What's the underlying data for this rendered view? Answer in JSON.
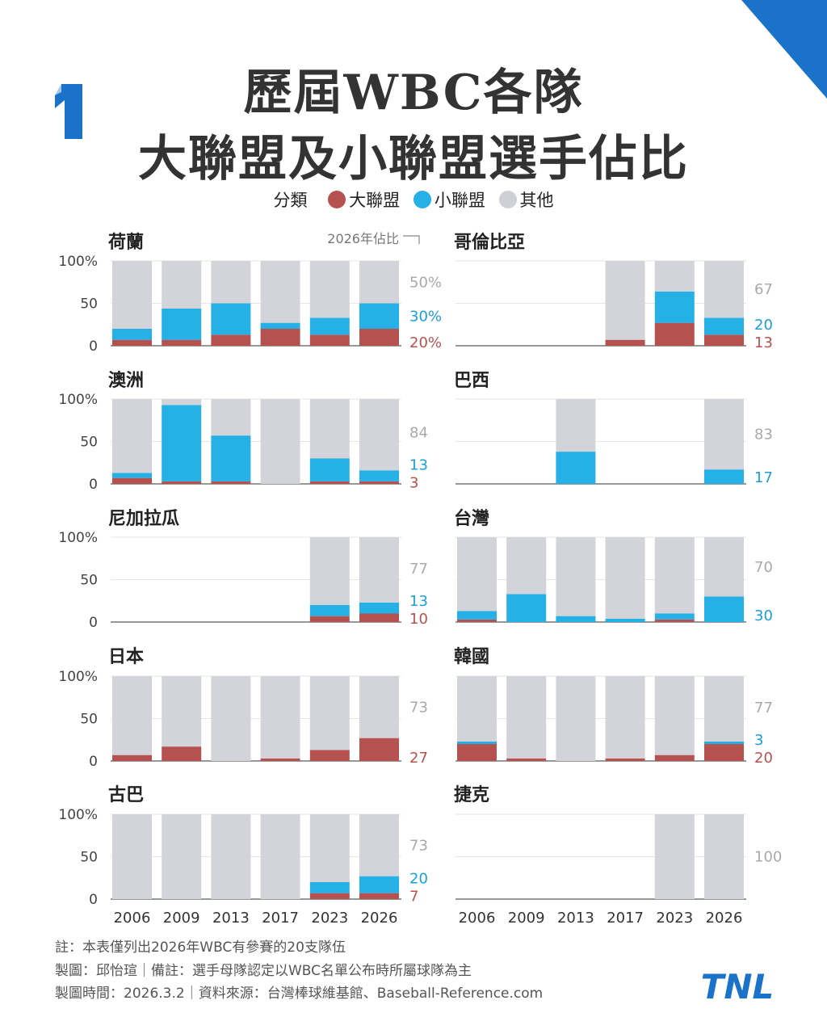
{
  "title_line1": "歷屆WBC各隊",
  "title_line2": "大聯盟及小聯盟選手佔比",
  "legend": {
    "label": "分類",
    "items": [
      {
        "name": "大聯盟",
        "color": "#b5524f"
      },
      {
        "name": "小聯盟",
        "color": "#25b1e6"
      },
      {
        "name": "其他",
        "color": "#cfd0d5"
      }
    ]
  },
  "annotation_2026": "2026年佔比",
  "colors": {
    "mlb": "#b5524f",
    "milb": "#25b1e6",
    "other": "#d3d4d9",
    "mlb_label": "#b5524f",
    "milb_label": "#1a9ed8",
    "other_label": "#a8a9ae",
    "accent": "#1a73c9"
  },
  "chart_data": {
    "type": "bar",
    "stacked": true,
    "categories": [
      "2006",
      "2009",
      "2013",
      "2017",
      "2023",
      "2026"
    ],
    "y_ticks": [
      "100%",
      "50",
      "0"
    ],
    "ylim": [
      0,
      100
    ],
    "series": [
      {
        "name": "大聯盟"
      },
      {
        "name": "小聯盟"
      },
      {
        "name": "其他"
      }
    ],
    "panels": [
      {
        "name": "荷蘭",
        "mlb": [
          7,
          7,
          13,
          20,
          13,
          20
        ],
        "milb": [
          13,
          37,
          37,
          7,
          20,
          30
        ],
        "other": [
          80,
          56,
          50,
          73,
          67,
          50
        ],
        "labels_2026": {
          "other": "50%",
          "milb": "30%",
          "mlb": "20%"
        }
      },
      {
        "name": "哥倫比亞",
        "mlb": [
          null,
          null,
          null,
          7,
          27,
          13
        ],
        "milb": [
          null,
          null,
          null,
          0,
          37,
          20
        ],
        "other": [
          null,
          null,
          null,
          93,
          36,
          67
        ],
        "labels_2026": {
          "other": "67",
          "milb": "20",
          "mlb": "13"
        }
      },
      {
        "name": "澳洲",
        "mlb": [
          7,
          3,
          3,
          0,
          3,
          3
        ],
        "milb": [
          6,
          90,
          54,
          0,
          27,
          13
        ],
        "other": [
          87,
          7,
          43,
          100,
          70,
          84
        ],
        "labels_2026": {
          "other": "84",
          "milb": "13",
          "mlb": "3"
        }
      },
      {
        "name": "巴西",
        "mlb": [
          null,
          null,
          0,
          null,
          null,
          0
        ],
        "milb": [
          null,
          null,
          38,
          null,
          null,
          17
        ],
        "other": [
          null,
          null,
          62,
          null,
          null,
          83
        ],
        "labels_2026": {
          "other": "83",
          "milb": "17"
        }
      },
      {
        "name": "尼加拉瓜",
        "mlb": [
          null,
          null,
          null,
          null,
          7,
          10
        ],
        "milb": [
          null,
          null,
          null,
          null,
          13,
          13
        ],
        "other": [
          null,
          null,
          null,
          null,
          80,
          77
        ],
        "labels_2026": {
          "other": "77",
          "milb": "13",
          "mlb": "10"
        }
      },
      {
        "name": "台灣",
        "mlb": [
          3,
          0,
          0,
          0,
          3,
          0
        ],
        "milb": [
          10,
          33,
          7,
          4,
          7,
          30
        ],
        "other": [
          87,
          67,
          93,
          96,
          90,
          70
        ],
        "labels_2026": {
          "other": "70",
          "milb": "30"
        }
      },
      {
        "name": "日本",
        "mlb": [
          7,
          17,
          0,
          3,
          13,
          27
        ],
        "milb": [
          0,
          0,
          0,
          0,
          0,
          0
        ],
        "other": [
          93,
          83,
          100,
          97,
          87,
          73
        ],
        "labels_2026": {
          "other": "73",
          "mlb": "27"
        }
      },
      {
        "name": "韓國",
        "mlb": [
          20,
          3,
          0,
          3,
          7,
          20
        ],
        "milb": [
          3,
          0,
          0,
          0,
          0,
          3
        ],
        "other": [
          77,
          97,
          100,
          97,
          93,
          77
        ],
        "labels_2026": {
          "other": "77",
          "milb": "3",
          "mlb": "20"
        }
      },
      {
        "name": "古巴",
        "mlb": [
          0,
          0,
          0,
          0,
          7,
          7
        ],
        "milb": [
          0,
          0,
          0,
          0,
          13,
          20
        ],
        "other": [
          100,
          100,
          100,
          100,
          80,
          73
        ],
        "labels_2026": {
          "other": "73",
          "milb": "20",
          "mlb": "7"
        }
      },
      {
        "name": "捷克",
        "mlb": [
          null,
          null,
          null,
          null,
          0,
          0
        ],
        "milb": [
          null,
          null,
          null,
          null,
          0,
          0
        ],
        "other": [
          null,
          null,
          null,
          null,
          100,
          100
        ],
        "labels_2026": {
          "other": "100"
        }
      }
    ]
  },
  "notes": [
    "註：本表僅列出2026年WBC有參賽的20支隊伍",
    "製圖：邱怡瑄｜備註：選手母隊認定以WBC名單公布時所屬球隊為主",
    "製圖時間：2026.3.2｜資料來源：台灣棒球維基館、Baseball-Reference.com"
  ],
  "logo_text": "TNL"
}
